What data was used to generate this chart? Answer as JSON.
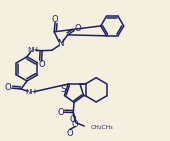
{
  "bg_color": "#f5efe0",
  "line_color": "#1e2060",
  "lw": 1.1,
  "fs": 5.2,
  "figsize": [
    1.7,
    1.41
  ],
  "dpi": 100,
  "xlim": [
    0,
    10
  ],
  "ylim": [
    0,
    8.3
  ]
}
